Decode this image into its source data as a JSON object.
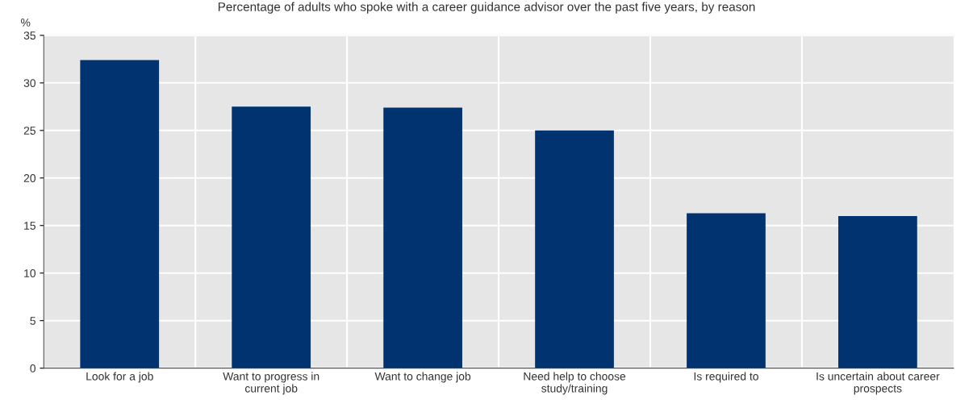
{
  "chart_data": {
    "type": "bar",
    "title": "Percentage of adults who spoke with a career guidance advisor over the past five years, by reason",
    "ylabel": "%",
    "categories": [
      "Look for a job",
      "Want to progress in\ncurrent job",
      "Want to change job",
      "Need help to choose\nstudy/training",
      "Is required to",
      "Is uncertain about career\nprospects"
    ],
    "values": [
      32.4,
      27.5,
      27.4,
      25.0,
      16.3,
      16.0
    ],
    "color": "#003370",
    "ylim": [
      0,
      35
    ],
    "yticks": [
      0,
      5,
      10,
      15,
      20,
      25,
      30,
      35
    ],
    "grid": true
  }
}
